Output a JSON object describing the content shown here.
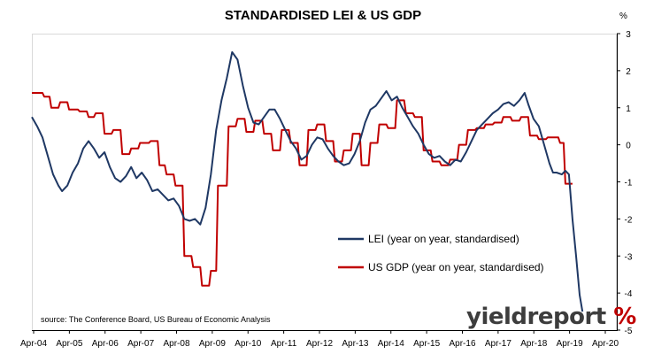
{
  "chart_data": {
    "type": "line",
    "title": "STANDARDISED LEI & US GDP",
    "y_unit_label": "%",
    "x_tick_labels": [
      "Apr-04",
      "Apr-05",
      "Apr-06",
      "Apr-07",
      "Apr-08",
      "Apr-09",
      "Apr-10",
      "Apr-11",
      "Apr-12",
      "Apr-13",
      "Apr-14",
      "Apr-15",
      "Apr-16",
      "Apr-17",
      "Apr-18",
      "Apr-19",
      "Apr-20"
    ],
    "x_range": [
      2004.25,
      2020.4
    ],
    "ylim": [
      -5,
      3
    ],
    "y_ticks": [
      3,
      2,
      1,
      0,
      -1,
      -2,
      -3,
      -4,
      -5
    ],
    "y_axis_side": "right",
    "grid": false,
    "legend_placement": "lower-right",
    "source": "source: The Conference Board, US Bureau of Economic Analysis",
    "series": [
      {
        "name": "LEI (year on year, standardised)",
        "color": "#1f3864",
        "points": [
          [
            2004.25,
            0.75
          ],
          [
            2004.4,
            0.5
          ],
          [
            2004.55,
            0.2
          ],
          [
            2004.7,
            -0.3
          ],
          [
            2004.85,
            -0.8
          ],
          [
            2005.0,
            -1.1
          ],
          [
            2005.1,
            -1.25
          ],
          [
            2005.25,
            -1.1
          ],
          [
            2005.4,
            -0.75
          ],
          [
            2005.55,
            -0.5
          ],
          [
            2005.7,
            -0.1
          ],
          [
            2005.85,
            0.1
          ],
          [
            2006.0,
            -0.1
          ],
          [
            2006.15,
            -0.35
          ],
          [
            2006.3,
            -0.2
          ],
          [
            2006.45,
            -0.6
          ],
          [
            2006.6,
            -0.9
          ],
          [
            2006.75,
            -1.0
          ],
          [
            2006.9,
            -0.85
          ],
          [
            2007.05,
            -0.6
          ],
          [
            2007.2,
            -0.9
          ],
          [
            2007.35,
            -0.75
          ],
          [
            2007.5,
            -0.95
          ],
          [
            2007.65,
            -1.25
          ],
          [
            2007.8,
            -1.2
          ],
          [
            2007.95,
            -1.35
          ],
          [
            2008.1,
            -1.5
          ],
          [
            2008.25,
            -1.45
          ],
          [
            2008.4,
            -1.65
          ],
          [
            2008.55,
            -2.0
          ],
          [
            2008.7,
            -2.05
          ],
          [
            2008.85,
            -2.0
          ],
          [
            2009.0,
            -2.15
          ],
          [
            2009.15,
            -1.7
          ],
          [
            2009.3,
            -0.8
          ],
          [
            2009.45,
            0.4
          ],
          [
            2009.6,
            1.2
          ],
          [
            2009.75,
            1.8
          ],
          [
            2009.9,
            2.5
          ],
          [
            2010.05,
            2.3
          ],
          [
            2010.2,
            1.6
          ],
          [
            2010.35,
            1.0
          ],
          [
            2010.5,
            0.6
          ],
          [
            2010.65,
            0.55
          ],
          [
            2010.8,
            0.75
          ],
          [
            2010.95,
            0.95
          ],
          [
            2011.1,
            0.95
          ],
          [
            2011.25,
            0.7
          ],
          [
            2011.4,
            0.4
          ],
          [
            2011.55,
            0.1
          ],
          [
            2011.7,
            -0.1
          ],
          [
            2011.85,
            -0.4
          ],
          [
            2012.0,
            -0.3
          ],
          [
            2012.15,
            0.0
          ],
          [
            2012.3,
            0.2
          ],
          [
            2012.45,
            0.15
          ],
          [
            2012.6,
            -0.1
          ],
          [
            2012.75,
            -0.3
          ],
          [
            2012.9,
            -0.45
          ],
          [
            2013.05,
            -0.55
          ],
          [
            2013.2,
            -0.5
          ],
          [
            2013.35,
            -0.25
          ],
          [
            2013.5,
            0.1
          ],
          [
            2013.65,
            0.6
          ],
          [
            2013.8,
            0.95
          ],
          [
            2013.95,
            1.05
          ],
          [
            2014.1,
            1.25
          ],
          [
            2014.25,
            1.45
          ],
          [
            2014.4,
            1.2
          ],
          [
            2014.55,
            1.3
          ],
          [
            2014.7,
            1.0
          ],
          [
            2014.85,
            0.75
          ],
          [
            2015.0,
            0.5
          ],
          [
            2015.15,
            0.3
          ],
          [
            2015.3,
            0.0
          ],
          [
            2015.45,
            -0.25
          ],
          [
            2015.6,
            -0.35
          ],
          [
            2015.75,
            -0.3
          ],
          [
            2015.9,
            -0.45
          ],
          [
            2016.05,
            -0.55
          ],
          [
            2016.2,
            -0.4
          ],
          [
            2016.35,
            -0.45
          ],
          [
            2016.5,
            -0.2
          ],
          [
            2016.65,
            0.1
          ],
          [
            2016.8,
            0.4
          ],
          [
            2016.95,
            0.55
          ],
          [
            2017.1,
            0.7
          ],
          [
            2017.25,
            0.85
          ],
          [
            2017.4,
            0.95
          ],
          [
            2017.55,
            1.1
          ],
          [
            2017.7,
            1.15
          ],
          [
            2017.85,
            1.05
          ],
          [
            2018.0,
            1.2
          ],
          [
            2018.15,
            1.4
          ],
          [
            2018.25,
            1.1
          ],
          [
            2018.4,
            0.7
          ],
          [
            2018.55,
            0.5
          ],
          [
            2018.7,
            0.0
          ],
          [
            2018.85,
            -0.5
          ],
          [
            2018.95,
            -0.75
          ],
          [
            2019.05,
            -0.75
          ],
          [
            2019.2,
            -0.8
          ],
          [
            2019.3,
            -0.7
          ],
          [
            2019.4,
            -0.8
          ],
          [
            2019.5,
            -2.0
          ],
          [
            2019.6,
            -3.0
          ],
          [
            2019.7,
            -4.05
          ],
          [
            2019.78,
            -4.5
          ]
        ]
      },
      {
        "name": "US GDP (year on year, standardised)",
        "color": "#c00000",
        "points": [
          [
            2004.25,
            1.4
          ],
          [
            2004.55,
            1.4
          ],
          [
            2004.6,
            1.3
          ],
          [
            2004.75,
            1.3
          ],
          [
            2004.8,
            1.0
          ],
          [
            2005.0,
            1.0
          ],
          [
            2005.05,
            1.15
          ],
          [
            2005.25,
            1.15
          ],
          [
            2005.3,
            0.95
          ],
          [
            2005.55,
            0.95
          ],
          [
            2005.6,
            0.9
          ],
          [
            2005.8,
            0.9
          ],
          [
            2005.85,
            0.75
          ],
          [
            2006.0,
            0.75
          ],
          [
            2006.05,
            0.85
          ],
          [
            2006.25,
            0.85
          ],
          [
            2006.3,
            0.3
          ],
          [
            2006.5,
            0.3
          ],
          [
            2006.55,
            0.4
          ],
          [
            2006.75,
            0.4
          ],
          [
            2006.8,
            -0.25
          ],
          [
            2007.0,
            -0.25
          ],
          [
            2007.05,
            -0.1
          ],
          [
            2007.25,
            -0.1
          ],
          [
            2007.3,
            0.05
          ],
          [
            2007.55,
            0.05
          ],
          [
            2007.6,
            0.1
          ],
          [
            2007.8,
            0.1
          ],
          [
            2007.85,
            -0.55
          ],
          [
            2008.0,
            -0.55
          ],
          [
            2008.05,
            -0.8
          ],
          [
            2008.25,
            -0.8
          ],
          [
            2008.3,
            -1.1
          ],
          [
            2008.5,
            -1.1
          ],
          [
            2008.55,
            -3.0
          ],
          [
            2008.75,
            -3.0
          ],
          [
            2008.8,
            -3.3
          ],
          [
            2009.0,
            -3.3
          ],
          [
            2009.05,
            -3.8
          ],
          [
            2009.25,
            -3.8
          ],
          [
            2009.3,
            -3.4
          ],
          [
            2009.45,
            -3.4
          ],
          [
            2009.5,
            -1.1
          ],
          [
            2009.75,
            -1.1
          ],
          [
            2009.8,
            0.5
          ],
          [
            2010.0,
            0.5
          ],
          [
            2010.05,
            0.7
          ],
          [
            2010.25,
            0.7
          ],
          [
            2010.3,
            0.35
          ],
          [
            2010.5,
            0.35
          ],
          [
            2010.55,
            0.65
          ],
          [
            2010.75,
            0.65
          ],
          [
            2010.8,
            0.3
          ],
          [
            2011.0,
            0.3
          ],
          [
            2011.05,
            -0.15
          ],
          [
            2011.25,
            -0.15
          ],
          [
            2011.3,
            0.4
          ],
          [
            2011.5,
            0.4
          ],
          [
            2011.55,
            0.05
          ],
          [
            2011.75,
            0.05
          ],
          [
            2011.8,
            -0.55
          ],
          [
            2012.0,
            -0.55
          ],
          [
            2012.05,
            0.4
          ],
          [
            2012.25,
            0.4
          ],
          [
            2012.3,
            0.55
          ],
          [
            2012.5,
            0.55
          ],
          [
            2012.55,
            0.1
          ],
          [
            2012.75,
            0.1
          ],
          [
            2012.8,
            -0.45
          ],
          [
            2013.0,
            -0.45
          ],
          [
            2013.05,
            -0.15
          ],
          [
            2013.25,
            -0.15
          ],
          [
            2013.3,
            0.3
          ],
          [
            2013.5,
            0.3
          ],
          [
            2013.55,
            -0.55
          ],
          [
            2013.75,
            -0.55
          ],
          [
            2013.8,
            0.05
          ],
          [
            2014.0,
            0.05
          ],
          [
            2014.05,
            0.55
          ],
          [
            2014.25,
            0.55
          ],
          [
            2014.3,
            0.45
          ],
          [
            2014.5,
            0.45
          ],
          [
            2014.55,
            1.2
          ],
          [
            2014.75,
            1.2
          ],
          [
            2014.8,
            0.85
          ],
          [
            2015.0,
            0.85
          ],
          [
            2015.05,
            0.75
          ],
          [
            2015.25,
            0.75
          ],
          [
            2015.3,
            -0.15
          ],
          [
            2015.5,
            -0.15
          ],
          [
            2015.55,
            -0.45
          ],
          [
            2015.75,
            -0.45
          ],
          [
            2015.8,
            -0.55
          ],
          [
            2016.0,
            -0.55
          ],
          [
            2016.05,
            -0.4
          ],
          [
            2016.25,
            -0.4
          ],
          [
            2016.3,
            0.0
          ],
          [
            2016.5,
            0.0
          ],
          [
            2016.55,
            0.4
          ],
          [
            2016.75,
            0.4
          ],
          [
            2016.8,
            0.45
          ],
          [
            2017.0,
            0.45
          ],
          [
            2017.05,
            0.55
          ],
          [
            2017.25,
            0.55
          ],
          [
            2017.3,
            0.6
          ],
          [
            2017.5,
            0.6
          ],
          [
            2017.55,
            0.75
          ],
          [
            2017.75,
            0.75
          ],
          [
            2017.8,
            0.65
          ],
          [
            2018.0,
            0.65
          ],
          [
            2018.05,
            0.75
          ],
          [
            2018.25,
            0.75
          ],
          [
            2018.3,
            0.25
          ],
          [
            2018.5,
            0.25
          ],
          [
            2018.55,
            0.15
          ],
          [
            2018.75,
            0.15
          ],
          [
            2018.8,
            0.2
          ],
          [
            2019.1,
            0.2
          ],
          [
            2019.15,
            0.05
          ],
          [
            2019.25,
            0.05
          ],
          [
            2019.3,
            -1.05
          ],
          [
            2019.5,
            -1.05
          ]
        ]
      }
    ]
  }
}
